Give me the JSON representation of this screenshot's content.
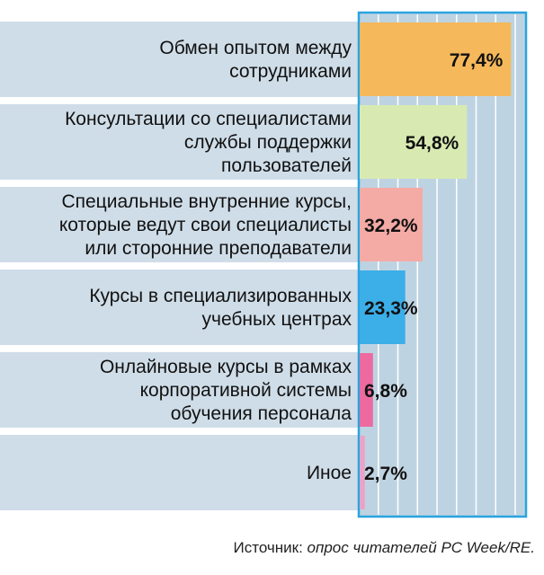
{
  "chart_data": {
    "type": "bar",
    "orientation": "horizontal",
    "categories": [
      [
        "Обмен опытом между",
        "сотрудниками"
      ],
      [
        "Консультации со специалистами",
        "службы поддержки",
        "пользователей"
      ],
      [
        "Специальные внутренние курсы,",
        "которые ведут свои специалисты",
        "или сторонние преподаватели"
      ],
      [
        "Курсы в специализированных",
        "учебных центрах"
      ],
      [
        "Онлайновые курсы в рамках",
        "корпоративной системы",
        "обучения персонала"
      ],
      [
        "Иное"
      ]
    ],
    "values": [
      77.4,
      54.8,
      32.2,
      23.3,
      6.8,
      2.7
    ],
    "value_labels": [
      "77,4%",
      "54,8%",
      "32,2%",
      "23,3%",
      "6,8%",
      "2,7%"
    ],
    "xlim": [
      0,
      80
    ],
    "grid": true,
    "colors": {
      "bars": [
        "#f5b85a",
        "#d8eab2",
        "#f4aaa5",
        "#3caee8",
        "#ec6aa0",
        "#e8a4c8"
      ],
      "row_band": "#cfdde8",
      "plot_bg": "#bed3e2",
      "plot_border": "#2aa4df",
      "grid": "#ffffff"
    }
  },
  "source": {
    "prefix": "Источник: ",
    "text": "опрос читателей PC Week/RE."
  }
}
